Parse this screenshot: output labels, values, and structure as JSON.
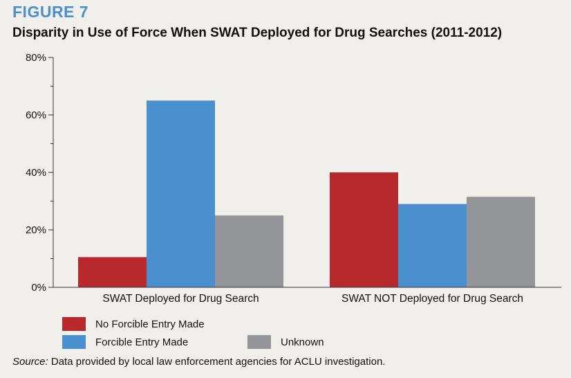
{
  "figure_label": "FIGURE 7",
  "chart_data": {
    "type": "bar",
    "title": "Disparity in Use of Force When SWAT Deployed for Drug Searches (2011-2012)",
    "categories": [
      "SWAT Deployed for Drug Search",
      "SWAT NOT Deployed for Drug Search"
    ],
    "series": [
      {
        "name": "No Forcible Entry Made",
        "values": [
          10.5,
          40
        ],
        "color": "#b8292d"
      },
      {
        "name": "Forcible Entry Made",
        "values": [
          65,
          29
        ],
        "color": "#4a8fce"
      },
      {
        "name": "Unknown",
        "values": [
          25,
          31.5
        ],
        "color": "#949598"
      }
    ],
    "ylim": [
      0,
      80
    ],
    "yticks": [
      "0%",
      "20%",
      "40%",
      "60%",
      "80%"
    ],
    "grid": false,
    "legend_position": "bottom"
  },
  "source": {
    "label": "Source:",
    "text": " Data provided by local law enforcement agencies for ACLU investigation."
  }
}
